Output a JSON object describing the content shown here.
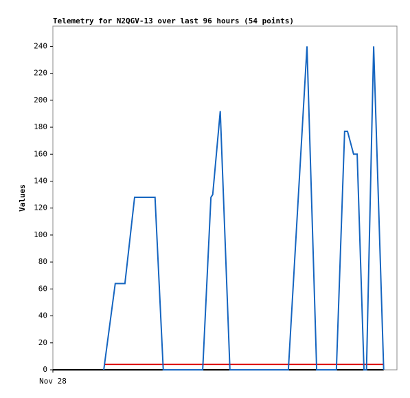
{
  "chart_data": {
    "type": "line",
    "title": "Telemetry for N2QGV-13 over last 96 hours (54 points)",
    "ylabel": "Values",
    "xlim": [
      0,
      96
    ],
    "xticks": [
      {
        "value": 0,
        "label": "Nov 28"
      }
    ],
    "ylim": [
      0,
      255
    ],
    "yticks": [
      0,
      20,
      40,
      60,
      80,
      100,
      120,
      140,
      160,
      180,
      200,
      220,
      240
    ],
    "series": [
      {
        "color": "#000000",
        "x": [
          0,
          92.3
        ],
        "values": [
          0,
          0
        ]
      },
      {
        "color": "#dd0000",
        "x": [
          14.2,
          92.3
        ],
        "values": [
          4,
          4
        ]
      },
      {
        "color": "#1565c0",
        "x": [
          14.2,
          17.4,
          20.1,
          22.8,
          28.5,
          30.8,
          41.8,
          44.1,
          44.6,
          46.7,
          49.4,
          65.7,
          70.9,
          73.6,
          79.1,
          81.4,
          82.2,
          83.9,
          84.9,
          86.8,
          87.5,
          89.5,
          92.3
        ],
        "values": [
          0,
          64,
          64,
          128,
          128,
          0,
          0,
          128,
          130,
          192,
          0,
          0,
          240,
          0,
          0,
          177,
          177,
          160,
          160,
          0,
          0,
          240,
          0
        ]
      }
    ]
  }
}
